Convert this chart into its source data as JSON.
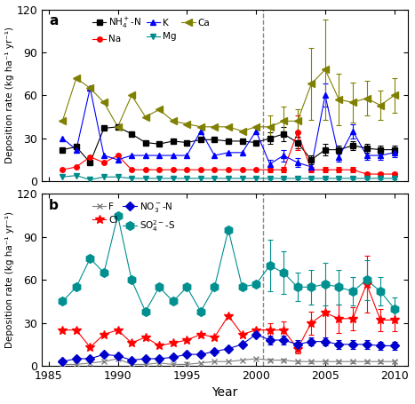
{
  "panel_a": {
    "title": "a",
    "ylabel": "Deposition rate (kg ha⁻¹ yr⁻¹)",
    "ylim": [
      0,
      120
    ],
    "yticks": [
      0,
      30,
      60,
      90,
      120
    ],
    "series": {
      "NH4+-N": {
        "color": "#000000",
        "marker": "s",
        "markersize": 4,
        "label": "NH$_4^+$-N",
        "years_single": [
          1986,
          1987,
          1988,
          1989,
          1990,
          1991,
          1992,
          1993,
          1994,
          1995,
          1996,
          1997,
          1998,
          1999,
          2000
        ],
        "values_single": [
          22,
          24,
          13,
          37,
          38,
          33,
          27,
          26,
          28,
          27,
          29,
          29,
          28,
          28,
          27
        ],
        "years_mean": [
          2001,
          2002,
          2003,
          2004,
          2005,
          2006,
          2007,
          2008,
          2009,
          2010
        ],
        "values_mean": [
          30,
          33,
          27,
          15,
          22,
          22,
          25,
          23,
          22,
          22
        ],
        "errors_mean": [
          4,
          5,
          4,
          3,
          4,
          3,
          3,
          3,
          3,
          3
        ]
      },
      "Na": {
        "color": "#ff0000",
        "marker": "o",
        "markersize": 4,
        "label": "Na",
        "years_single": [
          1986,
          1987,
          1988,
          1989,
          1990,
          1991,
          1992,
          1993,
          1994,
          1995,
          1996,
          1997,
          1998,
          1999,
          2000
        ],
        "values_single": [
          8,
          10,
          17,
          13,
          18,
          8,
          8,
          8,
          8,
          8,
          8,
          8,
          8,
          8,
          8
        ],
        "years_mean": [
          2001,
          2002,
          2003,
          2004,
          2005,
          2006,
          2007,
          2008,
          2009,
          2010
        ],
        "values_mean": [
          8,
          8,
          34,
          8,
          8,
          8,
          8,
          5,
          5,
          5
        ],
        "errors_mean": [
          2,
          2,
          12,
          2,
          2,
          2,
          2,
          1,
          1,
          1
        ]
      },
      "K": {
        "color": "#0000ff",
        "marker": "^",
        "markersize": 5,
        "label": "K",
        "years_single": [
          1986,
          1987,
          1988,
          1989,
          1990,
          1991,
          1992,
          1993,
          1994,
          1995,
          1996,
          1997,
          1998,
          1999,
          2000
        ],
        "values_single": [
          30,
          22,
          65,
          18,
          15,
          18,
          18,
          18,
          18,
          18,
          35,
          18,
          20,
          20,
          35
        ],
        "years_mean": [
          2001,
          2002,
          2003,
          2004,
          2005,
          2006,
          2007,
          2008,
          2009,
          2010
        ],
        "values_mean": [
          12,
          18,
          13,
          10,
          60,
          17,
          35,
          18,
          18,
          20
        ],
        "errors_mean": [
          3,
          4,
          3,
          3,
          8,
          3,
          5,
          3,
          3,
          3
        ]
      },
      "Mg": {
        "color": "#008b8b",
        "marker": "v",
        "markersize": 5,
        "label": "Mg",
        "years_single": [
          1986,
          1987,
          1988,
          1989,
          1990,
          1991,
          1992,
          1993,
          1994,
          1995,
          1996,
          1997,
          1998,
          1999,
          2000
        ],
        "values_single": [
          3,
          4,
          1,
          3,
          3,
          2,
          2,
          2,
          2,
          2,
          2,
          2,
          2,
          2,
          2
        ],
        "years_mean": [
          2001,
          2002,
          2003,
          2004,
          2005,
          2006,
          2007,
          2008,
          2009,
          2010
        ],
        "values_mean": [
          2,
          2,
          2,
          2,
          2,
          2,
          2,
          2,
          2,
          2
        ],
        "errors_mean": [
          1,
          1,
          1,
          1,
          1,
          1,
          1,
          1,
          1,
          1
        ]
      },
      "Ca": {
        "color": "#808000",
        "marker": "<",
        "markersize": 6,
        "label": "Ca",
        "years_single": [
          1986,
          1987,
          1988,
          1989,
          1990,
          1991,
          1992,
          1993,
          1994,
          1995,
          1996,
          1997,
          1998,
          1999,
          2000
        ],
        "values_single": [
          42,
          72,
          65,
          55,
          38,
          60,
          45,
          50,
          42,
          40,
          38,
          38,
          38,
          35,
          38
        ],
        "years_mean": [
          2001,
          2002,
          2003,
          2004,
          2005,
          2006,
          2007,
          2008,
          2009,
          2010
        ],
        "values_mean": [
          38,
          42,
          42,
          68,
          78,
          57,
          55,
          58,
          53,
          60
        ],
        "errors_mean": [
          8,
          10,
          8,
          25,
          35,
          18,
          14,
          12,
          10,
          12
        ]
      }
    }
  },
  "panel_b": {
    "title": "b",
    "ylabel": "Deposition rate (kg ha⁻¹ yr⁻¹)",
    "xlabel": "Year",
    "ylim": [
      0,
      120
    ],
    "yticks": [
      0,
      30,
      60,
      90,
      120
    ],
    "series": {
      "F": {
        "color": "#808080",
        "marker": "x",
        "markersize": 5,
        "label": "F",
        "years_single": [
          1986,
          1987,
          1988,
          1989,
          1990,
          1991,
          1992,
          1993,
          1994,
          1995,
          1996,
          1997,
          1998,
          1999,
          2000
        ],
        "values_single": [
          1,
          1,
          2,
          3,
          5,
          1,
          1,
          2,
          1,
          1,
          2,
          3,
          3,
          4,
          5
        ],
        "years_mean": [
          2001,
          2002,
          2003,
          2004,
          2005,
          2006,
          2007,
          2008,
          2009,
          2010
        ],
        "values_mean": [
          4,
          4,
          3,
          3,
          3,
          3,
          3,
          3,
          3,
          3
        ],
        "errors_mean": [
          1,
          1,
          1,
          1,
          1,
          1,
          1,
          1,
          1,
          1
        ]
      },
      "Cl": {
        "color": "#ff0000",
        "marker": "*",
        "markersize": 7,
        "label": "Cl",
        "years_single": [
          1986,
          1987,
          1988,
          1989,
          1990,
          1991,
          1992,
          1993,
          1994,
          1995,
          1996,
          1997,
          1998,
          1999,
          2000
        ],
        "values_single": [
          25,
          25,
          13,
          22,
          25,
          16,
          20,
          14,
          16,
          18,
          22,
          20,
          35,
          22,
          25
        ],
        "years_mean": [
          2001,
          2002,
          2003,
          2004,
          2005,
          2006,
          2007,
          2008,
          2009,
          2010
        ],
        "values_mean": [
          25,
          25,
          12,
          30,
          37,
          33,
          33,
          57,
          32,
          32
        ],
        "errors_mean": [
          5,
          6,
          3,
          8,
          20,
          10,
          8,
          20,
          8,
          8
        ]
      },
      "NO3--N": {
        "color": "#0000cd",
        "marker": "D",
        "markersize": 5,
        "label": "NO$_3^-$-N",
        "years_single": [
          1986,
          1987,
          1988,
          1989,
          1990,
          1991,
          1992,
          1993,
          1994,
          1995,
          1996,
          1997,
          1998,
          1999,
          2000
        ],
        "values_single": [
          3,
          5,
          5,
          8,
          7,
          4,
          5,
          5,
          6,
          8,
          8,
          10,
          12,
          15,
          22
        ],
        "years_mean": [
          2001,
          2002,
          2003,
          2004,
          2005,
          2006,
          2007,
          2008,
          2009,
          2010
        ],
        "values_mean": [
          18,
          18,
          15,
          17,
          17,
          15,
          15,
          15,
          14,
          14
        ],
        "errors_mean": [
          3,
          3,
          3,
          3,
          3,
          3,
          3,
          3,
          3,
          3
        ]
      },
      "SO42--S": {
        "color": "#009090",
        "marker": "h",
        "markersize": 7,
        "label": "SO$_4^{2-}$-S",
        "years_single": [
          1986,
          1987,
          1988,
          1989,
          1990,
          1991,
          1992,
          1993,
          1994,
          1995,
          1996,
          1997,
          1998,
          1999,
          2000
        ],
        "values_single": [
          45,
          55,
          75,
          65,
          105,
          60,
          38,
          55,
          45,
          55,
          38,
          55,
          95,
          55,
          57
        ],
        "years_mean": [
          2001,
          2002,
          2003,
          2004,
          2005,
          2006,
          2007,
          2008,
          2009,
          2010
        ],
        "values_mean": [
          70,
          65,
          55,
          55,
          57,
          55,
          52,
          60,
          52,
          40
        ],
        "errors_mean": [
          18,
          15,
          10,
          12,
          15,
          12,
          10,
          14,
          10,
          8
        ]
      }
    }
  },
  "dashed_line_x": 2000.5,
  "xlim": [
    1984.5,
    2011
  ],
  "xticks": [
    1985,
    1990,
    1995,
    2000,
    2005,
    2010
  ],
  "figure_size": [
    4.67,
    4.55
  ],
  "dpi": 100
}
